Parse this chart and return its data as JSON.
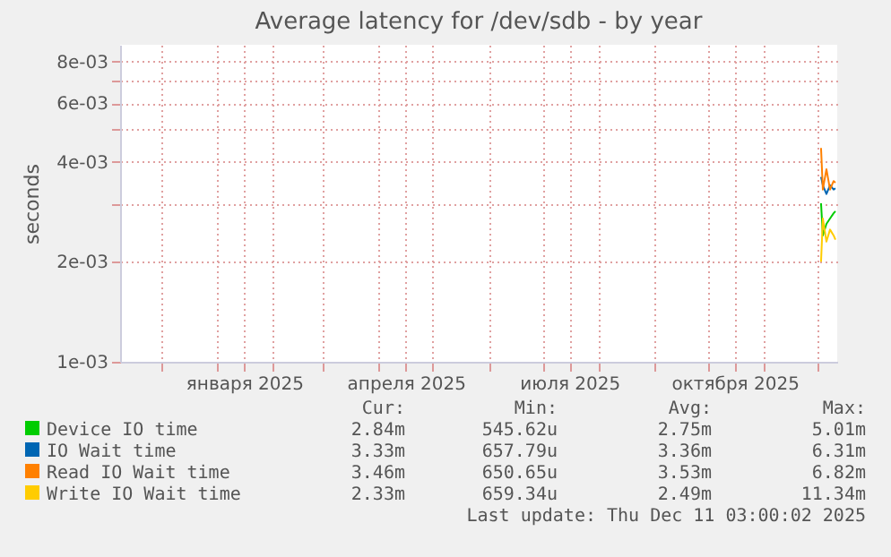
{
  "chart_data": {
    "type": "line",
    "title": "Average latency for /dev/sdb - by year",
    "ylabel": "seconds",
    "x": [
      "2025-12-03",
      "2025-12-04",
      "2025-12-06",
      "2025-12-08",
      "2025-12-10",
      "2025-12-11"
    ],
    "series": [
      {
        "name": "Device IO time",
        "color": "#00cc00",
        "values": [
          0.003,
          0.0024,
          0.0026,
          0.0027,
          0.0028,
          0.00284
        ]
      },
      {
        "name": "IO Wait time",
        "color": "#0066b3",
        "values": [
          0.0036,
          0.0034,
          0.0032,
          0.0034,
          0.0033,
          0.00333
        ]
      },
      {
        "name": "Read IO Wait time",
        "color": "#ff8000",
        "values": [
          0.0044,
          0.0033,
          0.0038,
          0.0033,
          0.0035,
          0.00346
        ]
      },
      {
        "name": "Write IO Wait time",
        "color": "#ffcc00",
        "values": [
          0.002,
          0.0027,
          0.0023,
          0.0025,
          0.0024,
          0.00233
        ]
      }
    ],
    "xlim": [
      "2024-11-08",
      "2025-12-12"
    ],
    "xticks": [
      {
        "value": "2024-12-01",
        "label": null
      },
      {
        "value": "2025-01-01",
        "label": null
      },
      {
        "value": "2025-01-16",
        "label": "января 2025"
      },
      {
        "value": "2025-02-01",
        "label": null
      },
      {
        "value": "2025-03-01",
        "label": null
      },
      {
        "value": "2025-04-01",
        "label": null
      },
      {
        "value": "2025-04-16",
        "label": "апреля 2025"
      },
      {
        "value": "2025-05-01",
        "label": null
      },
      {
        "value": "2025-06-01",
        "label": null
      },
      {
        "value": "2025-07-01",
        "label": null
      },
      {
        "value": "2025-07-16",
        "label": "июля 2025"
      },
      {
        "value": "2025-08-01",
        "label": null
      },
      {
        "value": "2025-09-01",
        "label": null
      },
      {
        "value": "2025-10-01",
        "label": null
      },
      {
        "value": "2025-10-16",
        "label": "октября 2025"
      },
      {
        "value": "2025-11-01",
        "label": null
      },
      {
        "value": "2025-12-01",
        "label": null
      }
    ],
    "ylim": [
      0.001,
      0.009
    ],
    "yticks": [
      {
        "value": 0.001,
        "label": "1e-03"
      },
      {
        "value": 0.002,
        "label": "2e-03"
      },
      {
        "value": 0.003,
        "label": null
      },
      {
        "value": 0.004,
        "label": "4e-03"
      },
      {
        "value": 0.005,
        "label": null
      },
      {
        "value": 0.006,
        "label": "6e-03"
      },
      {
        "value": 0.007,
        "label": null
      },
      {
        "value": 0.008,
        "label": "8e-03"
      }
    ],
    "log": true,
    "grid": true,
    "legend": "bottom",
    "annotations": [
      "Cur:",
      "Min:",
      "Avg:",
      "Max:",
      "2.84m",
      "545.62u",
      "2.75m",
      "5.01m",
      "3.33m",
      "657.79u",
      "3.36m",
      "6.31m",
      "3.46m",
      "650.65u",
      "3.53m",
      "6.82m",
      "2.33m",
      "659.34u",
      "2.49m",
      "11.34m",
      "Last update: Thu Dec 11 03:00:02 2025"
    ]
  }
}
